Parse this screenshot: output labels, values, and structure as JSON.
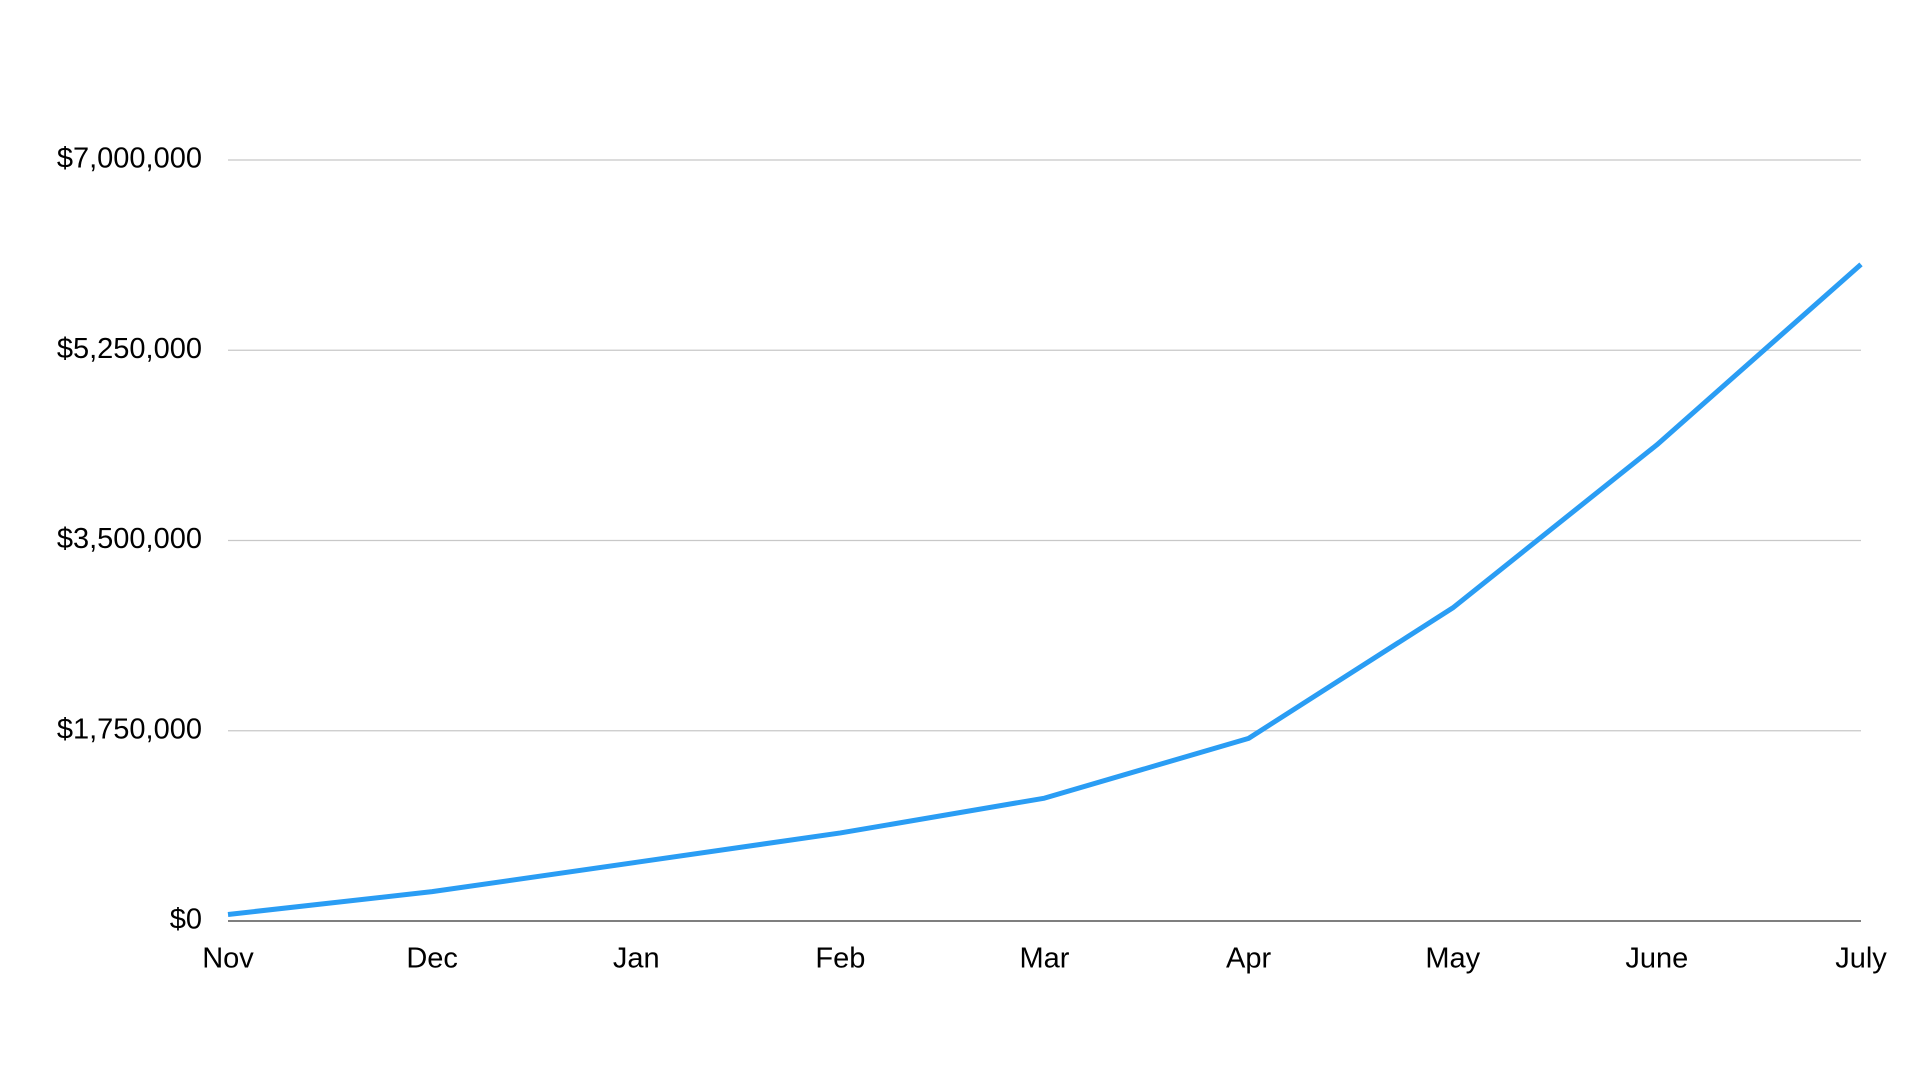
{
  "chart_data": {
    "type": "line",
    "categories": [
      "Nov",
      "Dec",
      "Jan",
      "Feb",
      "Mar",
      "Apr",
      "May",
      "June",
      "July"
    ],
    "series": [
      {
        "color": "#2a9df4",
        "values": [
          60000,
          270000,
          540000,
          810000,
          1130000,
          1680000,
          2880000,
          4380000,
          6040000
        ]
      }
    ],
    "ylim": [
      0,
      7000000
    ],
    "yticks": [
      {
        "value": 0,
        "label": "$0"
      },
      {
        "value": 1750000,
        "label": "$1,750,000"
      },
      {
        "value": 3500000,
        "label": "$3,500,000"
      },
      {
        "value": 5250000,
        "label": "$5,250,000"
      },
      {
        "value": 7000000,
        "label": "$7,000,000"
      }
    ],
    "grid": true
  }
}
